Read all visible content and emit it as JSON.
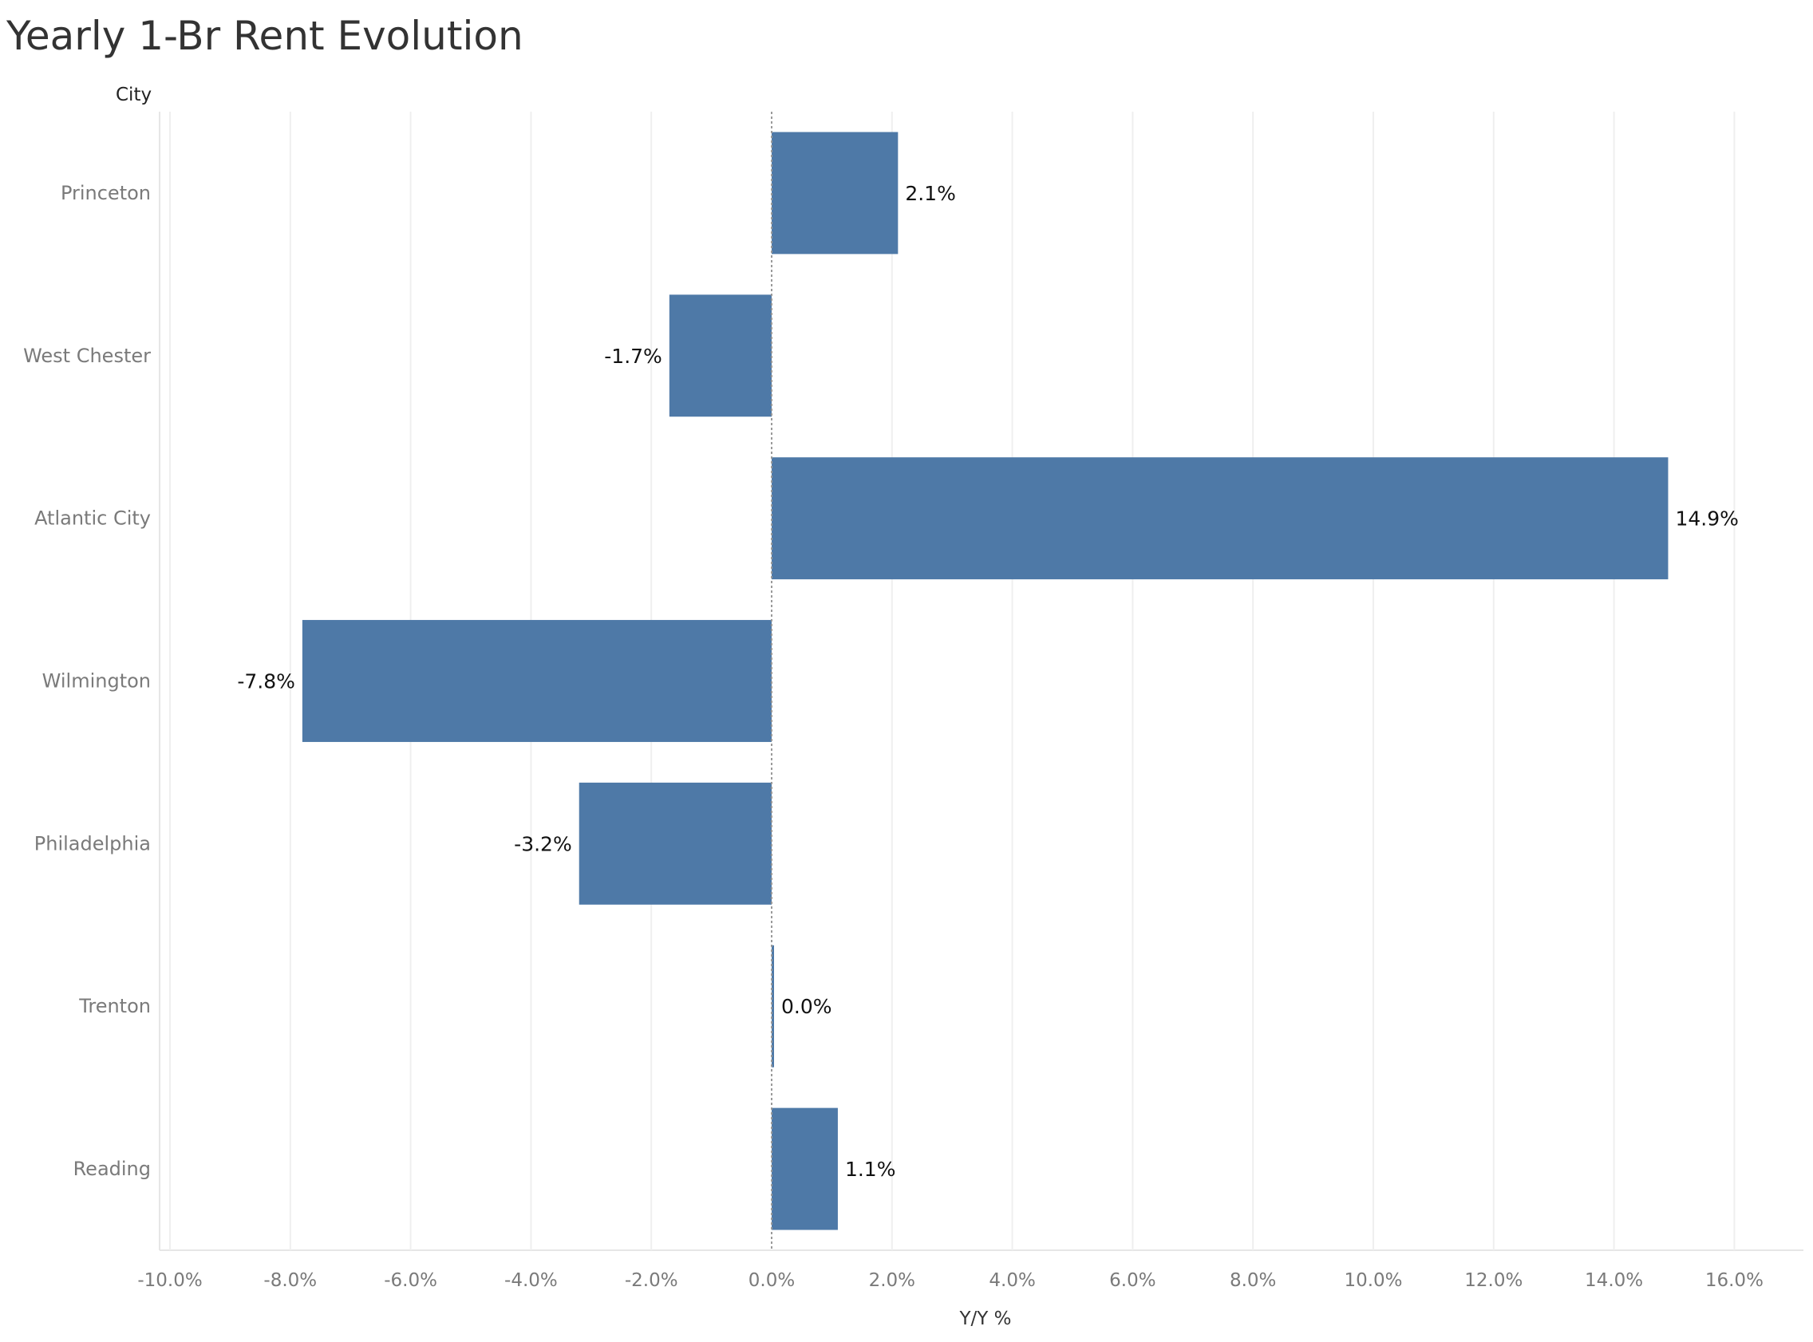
{
  "chart_data": {
    "type": "bar",
    "orientation": "horizontal",
    "title": "Yearly 1-Br Rent Evolution",
    "row_header": "City",
    "xlabel": "Y/Y %",
    "categories": [
      "Princeton",
      "West Chester",
      "Atlantic City",
      "Wilmington",
      "Philadelphia",
      "Trenton",
      "Reading"
    ],
    "values": [
      2.1,
      -1.7,
      14.9,
      -7.8,
      -3.2,
      0.0,
      1.1
    ],
    "data_labels": [
      "2.1%",
      "-1.7%",
      "14.9%",
      "-7.8%",
      "-3.2%",
      "0.0%",
      "1.1%"
    ],
    "xlim": [
      -10.0,
      16.0
    ],
    "xticks": [
      -10,
      -8,
      -6,
      -4,
      -2,
      0,
      2,
      4,
      6,
      8,
      10,
      12,
      14,
      16
    ],
    "xtick_labels": [
      "-10.0%",
      "-8.0%",
      "-6.0%",
      "-4.0%",
      "-2.0%",
      "0.0%",
      "2.0%",
      "4.0%",
      "6.0%",
      "8.0%",
      "10.0%",
      "12.0%",
      "14.0%",
      "16.0%"
    ],
    "grid": "vertical",
    "bar_color": "#4e79a7",
    "zero_line": "dotted"
  }
}
